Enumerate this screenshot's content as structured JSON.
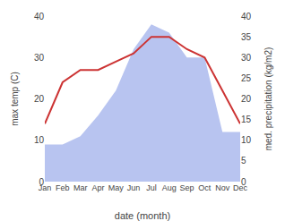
{
  "chart_data": {
    "type": "line",
    "categories": [
      "Jan",
      "Feb",
      "Mar",
      "Apr",
      "May",
      "Jun",
      "Jul",
      "Aug",
      "Sep",
      "Oct",
      "Nov",
      "Dec"
    ],
    "series": [
      {
        "type": "area",
        "axis": "y2",
        "color": "#b8c4f0",
        "values": [
          9,
          9,
          11,
          16,
          22,
          32,
          38,
          36,
          30,
          30,
          12,
          12
        ]
      },
      {
        "type": "line",
        "color": "#cc3333",
        "values": [
          14,
          24,
          27,
          27,
          29,
          31,
          35,
          35,
          32,
          30,
          22,
          14
        ]
      }
    ],
    "xlabel": "date (month)",
    "ylabel": "max temp (C)",
    "y2label": "med. precipitation (kg/m2)",
    "ylim": [
      0,
      40
    ],
    "yticks": [
      0,
      10,
      20,
      30,
      40
    ],
    "y2lim": [
      0,
      40
    ],
    "y2ticks": [
      0,
      5,
      10,
      15,
      20,
      25,
      30,
      35,
      40
    ],
    "grid": false
  }
}
